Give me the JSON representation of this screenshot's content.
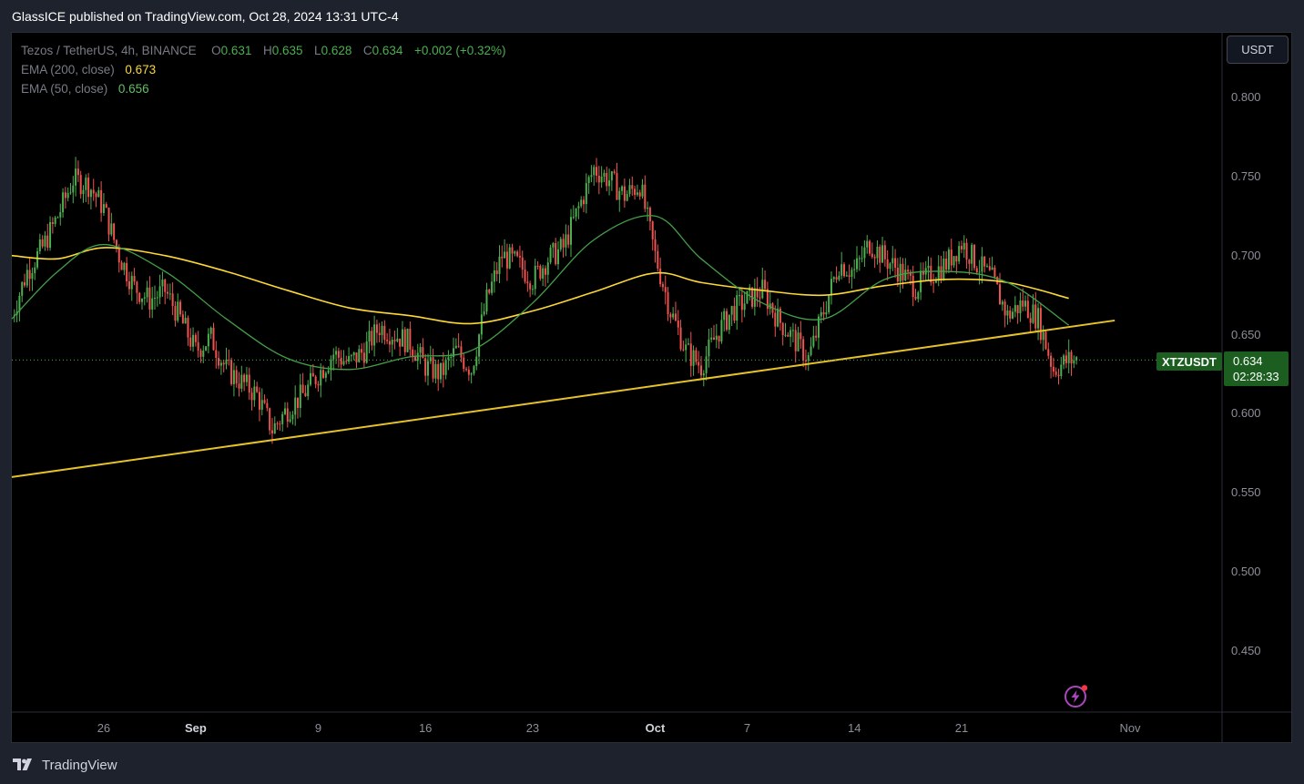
{
  "header": {
    "publisher_line": "GlassICE published on TradingView.com, Oct 28, 2024 13:31 UTC-4"
  },
  "legend": {
    "symbol": "Tezos / TetherUS, 4h, BINANCE",
    "o_label": "O",
    "o_value": "0.631",
    "h_label": "H",
    "h_value": "0.635",
    "l_label": "L",
    "l_value": "0.628",
    "c_label": "C",
    "c_value": "0.634",
    "change": "+0.002 (+0.32%)",
    "ema200_label": "EMA (200, close)",
    "ema200_value": "0.673",
    "ema50_label": "EMA (50, close)",
    "ema50_value": "0.656"
  },
  "currency_button": "USDT",
  "symbol_label": "XTZUSDT",
  "price_label": {
    "price": "0.634",
    "countdown": "02:28:33"
  },
  "footer": {
    "brand": "TradingView",
    "logo_icon": "tradingview-logo-icon"
  },
  "colors": {
    "up": "#4caf50",
    "down": "#ef5350",
    "ema200": "#fdd835",
    "ema50": "#43a047",
    "trendline": "#e6c229",
    "price_badge": "#1b5e20"
  },
  "chart_data": {
    "type": "candlestick",
    "symbol": "XTZUSDT",
    "timeframe": "4h",
    "exchange": "BINANCE",
    "ylim": [
      0.425,
      0.83
    ],
    "y_ticks": [
      "0.800",
      "0.750",
      "0.700",
      "0.650",
      "0.600",
      "0.550",
      "0.500",
      "0.450"
    ],
    "x_ticks": [
      {
        "label": "26",
        "date": "2024-08-26"
      },
      {
        "label": "Sep",
        "date": "2024-09-01",
        "bold": true
      },
      {
        "label": "9",
        "date": "2024-09-09"
      },
      {
        "label": "16",
        "date": "2024-09-16"
      },
      {
        "label": "23",
        "date": "2024-09-23"
      },
      {
        "label": "Oct",
        "date": "2024-10-01",
        "bold": true
      },
      {
        "label": "7",
        "date": "2024-10-07"
      },
      {
        "label": "14",
        "date": "2024-10-14"
      },
      {
        "label": "21",
        "date": "2024-10-21"
      },
      {
        "label": "Nov",
        "date": "2024-11-01"
      }
    ],
    "x_range": [
      "2024-08-20",
      "2024-11-05"
    ],
    "last_price": 0.634,
    "price_path": [
      {
        "date": "2024-08-20",
        "close": 0.662
      },
      {
        "date": "2024-08-21",
        "close": 0.69
      },
      {
        "date": "2024-08-22",
        "close": 0.705
      },
      {
        "date": "2024-08-23",
        "close": 0.725
      },
      {
        "date": "2024-08-24",
        "close": 0.748
      },
      {
        "date": "2024-08-25",
        "close": 0.745
      },
      {
        "date": "2024-08-26",
        "close": 0.73
      },
      {
        "date": "2024-08-27",
        "close": 0.7
      },
      {
        "date": "2024-08-28",
        "close": 0.68
      },
      {
        "date": "2024-08-29",
        "close": 0.672
      },
      {
        "date": "2024-08-30",
        "close": 0.678
      },
      {
        "date": "2024-08-31",
        "close": 0.66
      },
      {
        "date": "2024-09-01",
        "close": 0.64
      },
      {
        "date": "2024-09-02",
        "close": 0.648
      },
      {
        "date": "2024-09-03",
        "close": 0.628
      },
      {
        "date": "2024-09-04",
        "close": 0.62
      },
      {
        "date": "2024-09-05",
        "close": 0.612
      },
      {
        "date": "2024-09-06",
        "close": 0.59
      },
      {
        "date": "2024-09-07",
        "close": 0.603
      },
      {
        "date": "2024-09-08",
        "close": 0.612
      },
      {
        "date": "2024-09-09",
        "close": 0.625
      },
      {
        "date": "2024-09-10",
        "close": 0.638
      },
      {
        "date": "2024-09-11",
        "close": 0.632
      },
      {
        "date": "2024-09-12",
        "close": 0.64
      },
      {
        "date": "2024-09-13",
        "close": 0.655
      },
      {
        "date": "2024-09-14",
        "close": 0.65
      },
      {
        "date": "2024-09-15",
        "close": 0.645
      },
      {
        "date": "2024-09-16",
        "close": 0.63
      },
      {
        "date": "2024-09-17",
        "close": 0.625
      },
      {
        "date": "2024-09-18",
        "close": 0.64
      },
      {
        "date": "2024-09-19",
        "close": 0.628
      },
      {
        "date": "2024-09-20",
        "close": 0.672
      },
      {
        "date": "2024-09-21",
        "close": 0.7
      },
      {
        "date": "2024-09-22",
        "close": 0.695
      },
      {
        "date": "2024-09-23",
        "close": 0.685
      },
      {
        "date": "2024-09-24",
        "close": 0.698
      },
      {
        "date": "2024-09-25",
        "close": 0.705
      },
      {
        "date": "2024-09-26",
        "close": 0.73
      },
      {
        "date": "2024-09-27",
        "close": 0.755
      },
      {
        "date": "2024-09-28",
        "close": 0.748
      },
      {
        "date": "2024-09-29",
        "close": 0.738
      },
      {
        "date": "2024-09-30",
        "close": 0.745
      },
      {
        "date": "2024-10-01",
        "close": 0.7
      },
      {
        "date": "2024-10-02",
        "close": 0.665
      },
      {
        "date": "2024-10-03",
        "close": 0.64
      },
      {
        "date": "2024-10-04",
        "close": 0.63
      },
      {
        "date": "2024-10-05",
        "close": 0.65
      },
      {
        "date": "2024-10-06",
        "close": 0.665
      },
      {
        "date": "2024-10-07",
        "close": 0.672
      },
      {
        "date": "2024-10-08",
        "close": 0.678
      },
      {
        "date": "2024-10-09",
        "close": 0.66
      },
      {
        "date": "2024-10-10",
        "close": 0.648
      },
      {
        "date": "2024-10-11",
        "close": 0.635
      },
      {
        "date": "2024-10-12",
        "close": 0.665
      },
      {
        "date": "2024-10-13",
        "close": 0.695
      },
      {
        "date": "2024-10-14",
        "close": 0.69
      },
      {
        "date": "2024-10-15",
        "close": 0.708
      },
      {
        "date": "2024-10-16",
        "close": 0.698
      },
      {
        "date": "2024-10-17",
        "close": 0.69
      },
      {
        "date": "2024-10-18",
        "close": 0.68
      },
      {
        "date": "2024-10-19",
        "close": 0.688
      },
      {
        "date": "2024-10-20",
        "close": 0.695
      },
      {
        "date": "2024-10-21",
        "close": 0.708
      },
      {
        "date": "2024-10-22",
        "close": 0.695
      },
      {
        "date": "2024-10-23",
        "close": 0.685
      },
      {
        "date": "2024-10-24",
        "close": 0.662
      },
      {
        "date": "2024-10-25",
        "close": 0.67
      },
      {
        "date": "2024-10-26",
        "close": 0.66
      },
      {
        "date": "2024-10-27",
        "close": 0.628
      },
      {
        "date": "2024-10-28",
        "close": 0.634
      }
    ],
    "series": [
      {
        "name": "EMA (200, close)",
        "points": [
          [
            "2024-08-20",
            0.7
          ],
          [
            "2024-08-23",
            0.698
          ],
          [
            "2024-08-26",
            0.705
          ],
          [
            "2024-08-30",
            0.7
          ],
          [
            "2024-09-03",
            0.69
          ],
          [
            "2024-09-07",
            0.678
          ],
          [
            "2024-09-11",
            0.667
          ],
          [
            "2024-09-15",
            0.662
          ],
          [
            "2024-09-19",
            0.657
          ],
          [
            "2024-09-23",
            0.665
          ],
          [
            "2024-09-27",
            0.677
          ],
          [
            "2024-10-01",
            0.689
          ],
          [
            "2024-10-04",
            0.683
          ],
          [
            "2024-10-08",
            0.678
          ],
          [
            "2024-10-12",
            0.675
          ],
          [
            "2024-10-16",
            0.681
          ],
          [
            "2024-10-20",
            0.685
          ],
          [
            "2024-10-24",
            0.683
          ],
          [
            "2024-10-28",
            0.673
          ]
        ]
      },
      {
        "name": "EMA (50, close)",
        "points": [
          [
            "2024-08-20",
            0.66
          ],
          [
            "2024-08-23",
            0.69
          ],
          [
            "2024-08-26",
            0.707
          ],
          [
            "2024-08-30",
            0.69
          ],
          [
            "2024-09-03",
            0.66
          ],
          [
            "2024-09-07",
            0.635
          ],
          [
            "2024-09-11",
            0.628
          ],
          [
            "2024-09-15",
            0.636
          ],
          [
            "2024-09-19",
            0.64
          ],
          [
            "2024-09-23",
            0.67
          ],
          [
            "2024-09-27",
            0.71
          ],
          [
            "2024-10-01",
            0.725
          ],
          [
            "2024-10-04",
            0.698
          ],
          [
            "2024-10-08",
            0.67
          ],
          [
            "2024-10-12",
            0.66
          ],
          [
            "2024-10-16",
            0.685
          ],
          [
            "2024-10-20",
            0.69
          ],
          [
            "2024-10-24",
            0.683
          ],
          [
            "2024-10-28",
            0.656
          ]
        ]
      },
      {
        "name": "trendline",
        "points": [
          [
            "2024-08-20",
            0.56
          ],
          [
            "2024-10-31",
            0.659
          ]
        ]
      }
    ]
  }
}
